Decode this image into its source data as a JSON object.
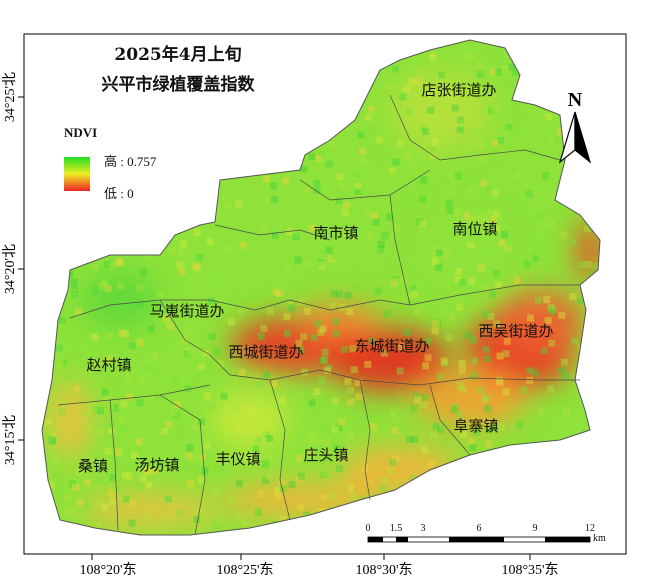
{
  "title": {
    "line1": "2025年4月上旬",
    "line2": "兴平市绿植覆盖指数"
  },
  "legend": {
    "title": "NDVI",
    "high_label": "高 : 0.757",
    "low_label": "低 : 0",
    "high_color": "#22dd22",
    "mid_color": "#eeee22",
    "low_color": "#ee2222"
  },
  "north_arrow": {
    "label": "N"
  },
  "towns": [
    {
      "name": "店张街道办",
      "ndvi_level": "high"
    },
    {
      "name": "南市镇",
      "ndvi_level": "high"
    },
    {
      "name": "南位镇",
      "ndvi_level": "high"
    },
    {
      "name": "马嵬街道办",
      "ndvi_level": "high"
    },
    {
      "name": "赵村镇",
      "ndvi_level": "high"
    },
    {
      "name": "西城街道办",
      "ndvi_level": "low"
    },
    {
      "name": "东城街道办",
      "ndvi_level": "low"
    },
    {
      "name": "西吴街道办",
      "ndvi_level": "low"
    },
    {
      "name": "阜寨镇",
      "ndvi_level": "medium"
    },
    {
      "name": "桑镇",
      "ndvi_level": "high"
    },
    {
      "name": "汤坊镇",
      "ndvi_level": "high"
    },
    {
      "name": "丰仪镇",
      "ndvi_level": "high"
    },
    {
      "name": "庄头镇",
      "ndvi_level": "medium"
    }
  ],
  "axes": {
    "x_ticks": [
      "108°20'东",
      "108°25'东",
      "108°30'东",
      "108°35'东"
    ],
    "y_ticks": [
      "34°25'北",
      "34°20'北",
      "34°15'北"
    ]
  },
  "scale_bar": {
    "labels": [
      "0",
      "1.5",
      "3",
      "6",
      "9",
      "12"
    ],
    "unit": "km"
  }
}
